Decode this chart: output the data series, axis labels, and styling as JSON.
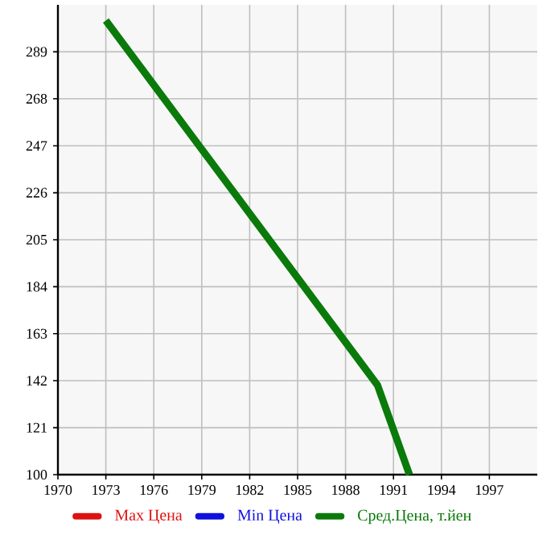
{
  "chart_data": {
    "type": "line",
    "x": [
      1973,
      1990,
      1992
    ],
    "series": [
      {
        "name": "Max Цена",
        "color": "#dd1111",
        "values": [
          null,
          null,
          null
        ]
      },
      {
        "name": "Min Цена",
        "color": "#1111dd",
        "values": [
          null,
          null,
          null
        ]
      },
      {
        "name": "Сред.Цена, т.йен",
        "color": "#0a7a0a",
        "values": [
          303,
          140,
          100
        ]
      }
    ],
    "xlim": [
      1970,
      2000
    ],
    "xticks": [
      1970,
      1973,
      1976,
      1979,
      1982,
      1985,
      1988,
      1991,
      1994,
      1997
    ],
    "ylim": [
      100,
      310
    ],
    "yticks": [
      100,
      121,
      142,
      163,
      184,
      205,
      226,
      247,
      268,
      289
    ],
    "grid": true,
    "legend": "bottom",
    "marker": "none",
    "line_style": "solid"
  }
}
